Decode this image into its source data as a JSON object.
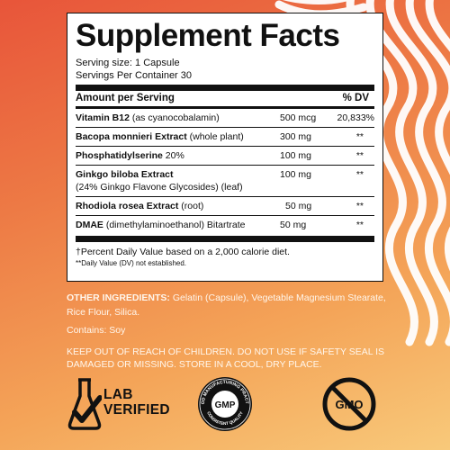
{
  "panel": {
    "title": "Supplement Facts",
    "serving_size": "Serving size: 1 Capsule",
    "servings_per_container": "Servings Per Container 30",
    "header_amount": "Amount per Serving",
    "header_dv": "% DV",
    "rows": [
      {
        "name_bold": "Vitamin B12",
        "name_rest": " (as cyanocobalamin)",
        "amount": "500 mcg",
        "dv": "20,833%"
      },
      {
        "name_bold": "Bacopa monnieri Extract",
        "name_rest": " (whole plant)",
        "amount": "300 mg",
        "dv": "**"
      },
      {
        "name_bold": "Phosphatidylserine",
        "name_rest": " 20%",
        "amount": "100 mg",
        "dv": "**"
      },
      {
        "name_bold": "Ginkgo biloba Extract",
        "name_rest": "",
        "name_line2": "(24% Ginkgo Flavone Glycosides) (leaf)",
        "amount": "100 mg",
        "dv": "**"
      },
      {
        "name_bold": "Rhodiola rosea Extract",
        "name_rest": " (root)",
        "amount": "50 mg",
        "dv": "**"
      },
      {
        "name_bold": "DMAE",
        "name_rest": " (dimethylaminoethanol) Bitartrate",
        "amount": "50 mg",
        "dv": "**"
      }
    ],
    "footnote_1": "†Percent Daily Value based on a 2,000 calorie diet.",
    "footnote_2": "**Daily Value (DV) not established."
  },
  "other_ingredients": {
    "label": "OTHER INGREDIENTS:",
    "text": " Gelatin (Capsule), Vegetable Magnesium Stearate, Rice Flour, Silica."
  },
  "contains": "Contains: Soy",
  "warning": "KEEP OUT OF REACH OF CHILDREN. DO NOT USE IF SAFETY SEAL IS DAMAGED OR MISSING. STORE IN A COOL, DRY PLACE.",
  "badges": {
    "lab_line1": "LAB",
    "lab_line2": "VERIFIED",
    "gmp_center": "GMP",
    "gmp_ring_top": "GOOD MANUFACTURING PRACTICE",
    "gmp_ring_bottom": "CONSISTENT QUALITY",
    "gmo_text": "GMO"
  },
  "colors": {
    "bg_top": "#e8553a",
    "bg_bottom": "#f8c97a",
    "wave_stroke": "#ffffff",
    "panel_bg": "#ffffff",
    "ink": "#111111"
  },
  "icons": {
    "lab": "flask-check-icon",
    "gmp": "gmp-seal-icon",
    "gmo": "no-gmo-icon"
  }
}
